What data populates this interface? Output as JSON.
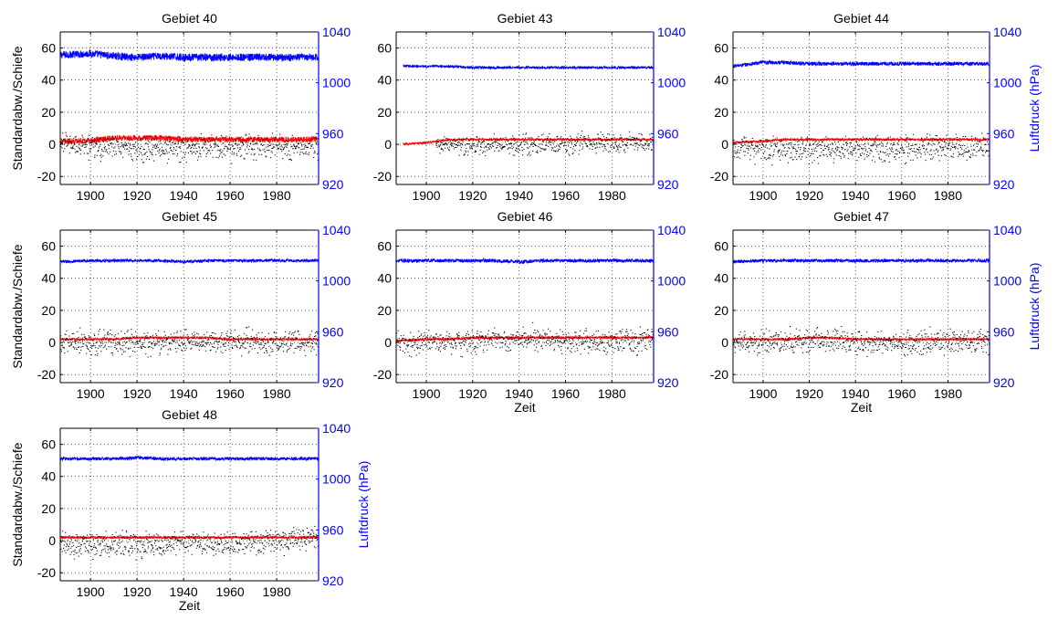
{
  "figure": {
    "left_axis_label": "Standardabw./Schiefe",
    "right_axis_label": "Luftdruck (hPa)",
    "x_axis_label": "Zeit"
  },
  "colors": {
    "pressure": "#0000ff",
    "std": "#ff0000",
    "skew": "#000000",
    "grid": "#000000",
    "right_axis": "#0000ff"
  },
  "chart_data": [
    {
      "type": "line",
      "title": "Gebiet 40",
      "xlim": [
        1887,
        1998
      ],
      "xticks": [
        1900,
        1920,
        1940,
        1960,
        1980
      ],
      "ylim_left": [
        -25,
        70
      ],
      "yticks_left": [
        -20,
        0,
        20,
        40,
        60
      ],
      "ylim_right": [
        920,
        1040
      ],
      "yticks_right": [
        920,
        960,
        1000,
        1040
      ],
      "ylabel_left": "Standardabw./Schiefe",
      "ylabel_right": "",
      "xlabel": "",
      "grid": true,
      "series": [
        {
          "role": "pressure",
          "axis": "right",
          "start": 1887,
          "end": 1998,
          "x": [
            1889,
            1900,
            1910,
            1920,
            1930,
            1940,
            1950,
            1960,
            1970,
            1980,
            1990,
            1998
          ],
          "y": [
            1022,
            1023,
            1021,
            1020,
            1021,
            1020,
            1020,
            1020,
            1020,
            1020,
            1020,
            1020
          ],
          "noise": 3
        },
        {
          "role": "std",
          "axis": "left",
          "start": 1887,
          "end": 1998,
          "x": [
            1889,
            1900,
            1910,
            1920,
            1930,
            1940,
            1950,
            1960,
            1970,
            1980,
            1990,
            1998
          ],
          "y": [
            2,
            2,
            4,
            4,
            4,
            3,
            3,
            3,
            3,
            3,
            3,
            3
          ],
          "noise": 1.8
        },
        {
          "role": "skew",
          "axis": "left",
          "start": 1887,
          "end": 1998,
          "x": [
            1889,
            1900,
            1910,
            1920,
            1930,
            1940,
            1950,
            1960,
            1970,
            1980,
            1990,
            1998
          ],
          "y": [
            0,
            -1,
            -2,
            -3,
            -3,
            -3,
            -2,
            -2,
            -2,
            -2,
            -2,
            -2
          ],
          "noise": 6
        }
      ]
    },
    {
      "type": "line",
      "title": "Gebiet 43",
      "xlim": [
        1887,
        1998
      ],
      "xticks": [
        1900,
        1920,
        1940,
        1960,
        1980
      ],
      "ylim_left": [
        -25,
        70
      ],
      "yticks_left": [
        -20,
        0,
        20,
        40,
        60
      ],
      "ylim_right": [
        920,
        1040
      ],
      "yticks_right": [
        920,
        960,
        1000,
        1040
      ],
      "ylabel_left": "",
      "ylabel_right": "",
      "xlabel": "",
      "grid": true,
      "series": [
        {
          "role": "pressure",
          "axis": "right",
          "start": 1890,
          "end": 1998,
          "x": [
            1890,
            1900,
            1910,
            1920,
            1930,
            1940,
            1950,
            1960,
            1970,
            1980,
            1990,
            1998
          ],
          "y": [
            1013,
            1013,
            1013,
            1012,
            1012,
            1012,
            1012,
            1012,
            1012,
            1012,
            1012,
            1012
          ],
          "noise": 1
        },
        {
          "role": "std",
          "axis": "left",
          "start": 1890,
          "end": 1998,
          "x": [
            1890,
            1900,
            1910,
            1920,
            1930,
            1940,
            1950,
            1960,
            1970,
            1980,
            1990,
            1998
          ],
          "y": [
            0,
            1,
            3,
            3,
            3,
            3,
            3,
            3,
            3,
            3,
            3,
            3
          ],
          "noise": 0.7
        },
        {
          "role": "skew",
          "axis": "left",
          "start": 1904,
          "end": 1998,
          "x": [
            1904,
            1910,
            1920,
            1930,
            1940,
            1950,
            1960,
            1970,
            1980,
            1990,
            1998
          ],
          "y": [
            0,
            -1,
            -1,
            -1,
            0,
            0,
            0,
            1,
            1,
            1,
            1
          ],
          "noise": 5
        }
      ]
    },
    {
      "type": "line",
      "title": "Gebiet 44",
      "xlim": [
        1887,
        1998
      ],
      "xticks": [
        1900,
        1920,
        1940,
        1960,
        1980
      ],
      "ylim_left": [
        -25,
        70
      ],
      "yticks_left": [
        -20,
        0,
        20,
        40,
        60
      ],
      "ylim_right": [
        920,
        1040
      ],
      "yticks_right": [
        920,
        960,
        1000,
        1040
      ],
      "ylabel_left": "",
      "ylabel_right": "Luftdruck (hPa)",
      "xlabel": "",
      "grid": true,
      "series": [
        {
          "role": "pressure",
          "axis": "right",
          "start": 1887,
          "end": 1998,
          "x": [
            1887,
            1900,
            1910,
            1920,
            1930,
            1940,
            1950,
            1960,
            1970,
            1980,
            1990,
            1998
          ],
          "y": [
            1013,
            1016,
            1016,
            1015,
            1015,
            1015,
            1015,
            1015,
            1015,
            1015,
            1015,
            1015
          ],
          "noise": 1.5
        },
        {
          "role": "std",
          "axis": "left",
          "start": 1887,
          "end": 1998,
          "x": [
            1887,
            1900,
            1910,
            1920,
            1930,
            1940,
            1950,
            1960,
            1970,
            1980,
            1990,
            1998
          ],
          "y": [
            1,
            2,
            3,
            3,
            3,
            3,
            3,
            3,
            3,
            3,
            3,
            3
          ],
          "noise": 0.8
        },
        {
          "role": "skew",
          "axis": "left",
          "start": 1887,
          "end": 1998,
          "x": [
            1887,
            1900,
            1910,
            1920,
            1930,
            1940,
            1950,
            1960,
            1970,
            1980,
            1990,
            1998
          ],
          "y": [
            -2,
            -4,
            -3,
            -3,
            -3,
            -3,
            -3,
            -3,
            -2,
            -2,
            -2,
            -2
          ],
          "noise": 6
        }
      ]
    },
    {
      "type": "line",
      "title": "Gebiet 45",
      "xlim": [
        1887,
        1998
      ],
      "xticks": [
        1900,
        1920,
        1940,
        1960,
        1980
      ],
      "ylim_left": [
        -25,
        70
      ],
      "yticks_left": [
        -20,
        0,
        20,
        40,
        60
      ],
      "ylim_right": [
        920,
        1040
      ],
      "yticks_right": [
        920,
        960,
        1000,
        1040
      ],
      "ylabel_left": "Standardabw./Schiefe",
      "ylabel_right": "",
      "xlabel": "",
      "grid": true,
      "series": [
        {
          "role": "pressure",
          "axis": "right",
          "start": 1887,
          "end": 1998,
          "x": [
            1887,
            1900,
            1910,
            1920,
            1930,
            1940,
            1950,
            1960,
            1970,
            1980,
            1990,
            1998
          ],
          "y": [
            1015,
            1016,
            1016,
            1016,
            1016,
            1015,
            1016,
            1016,
            1016,
            1016,
            1016,
            1016
          ],
          "noise": 1.2
        },
        {
          "role": "std",
          "axis": "left",
          "start": 1887,
          "end": 1998,
          "x": [
            1887,
            1900,
            1910,
            1920,
            1930,
            1940,
            1950,
            1960,
            1970,
            1980,
            1990,
            1998
          ],
          "y": [
            2,
            2,
            2,
            3,
            3,
            3,
            3,
            2,
            2,
            2,
            2,
            2
          ],
          "noise": 0.7
        },
        {
          "role": "skew",
          "axis": "left",
          "start": 1887,
          "end": 1998,
          "x": [
            1887,
            1900,
            1910,
            1920,
            1930,
            1940,
            1950,
            1960,
            1970,
            1980,
            1990,
            1998
          ],
          "y": [
            0,
            0,
            0,
            0,
            0,
            0,
            0,
            0,
            0,
            0,
            0,
            0
          ],
          "noise": 6
        }
      ]
    },
    {
      "type": "line",
      "title": "Gebiet 46",
      "xlim": [
        1887,
        1998
      ],
      "xticks": [
        1900,
        1920,
        1940,
        1960,
        1980
      ],
      "ylim_left": [
        -25,
        70
      ],
      "yticks_left": [
        -20,
        0,
        20,
        40,
        60
      ],
      "ylim_right": [
        920,
        1040
      ],
      "yticks_right": [
        920,
        960,
        1000,
        1040
      ],
      "ylabel_left": "",
      "ylabel_right": "",
      "xlabel": "Zeit",
      "grid": true,
      "series": [
        {
          "role": "pressure",
          "axis": "right",
          "start": 1887,
          "end": 1998,
          "x": [
            1887,
            1900,
            1910,
            1920,
            1930,
            1940,
            1950,
            1960,
            1970,
            1980,
            1990,
            1998
          ],
          "y": [
            1016,
            1016,
            1016,
            1016,
            1016,
            1015,
            1016,
            1016,
            1016,
            1016,
            1016,
            1016
          ],
          "noise": 1.4
        },
        {
          "role": "std",
          "axis": "left",
          "start": 1887,
          "end": 1998,
          "x": [
            1887,
            1900,
            1910,
            1920,
            1930,
            1940,
            1950,
            1960,
            1970,
            1980,
            1990,
            1998
          ],
          "y": [
            1,
            2,
            2,
            3,
            3,
            3,
            3,
            3,
            3,
            3,
            3,
            3
          ],
          "noise": 0.8
        },
        {
          "role": "skew",
          "axis": "left",
          "start": 1887,
          "end": 1998,
          "x": [
            1887,
            1900,
            1910,
            1920,
            1930,
            1940,
            1950,
            1960,
            1970,
            1980,
            1990,
            1998
          ],
          "y": [
            0,
            0,
            0,
            0,
            1,
            2,
            2,
            2,
            1,
            1,
            1,
            1
          ],
          "noise": 6
        }
      ]
    },
    {
      "type": "line",
      "title": "Gebiet 47",
      "xlim": [
        1887,
        1998
      ],
      "xticks": [
        1900,
        1920,
        1940,
        1960,
        1980
      ],
      "ylim_left": [
        -25,
        70
      ],
      "yticks_left": [
        -20,
        0,
        20,
        40,
        60
      ],
      "ylim_right": [
        920,
        1040
      ],
      "yticks_right": [
        920,
        960,
        1000,
        1040
      ],
      "ylabel_left": "",
      "ylabel_right": "Luftdruck (hPa)",
      "xlabel": "Zeit",
      "grid": true,
      "series": [
        {
          "role": "pressure",
          "axis": "right",
          "start": 1887,
          "end": 1998,
          "x": [
            1887,
            1900,
            1910,
            1920,
            1930,
            1940,
            1950,
            1960,
            1970,
            1980,
            1990,
            1998
          ],
          "y": [
            1015,
            1016,
            1016,
            1016,
            1016,
            1016,
            1016,
            1016,
            1016,
            1016,
            1016,
            1016
          ],
          "noise": 1.3
        },
        {
          "role": "std",
          "axis": "left",
          "start": 1887,
          "end": 1998,
          "x": [
            1887,
            1900,
            1910,
            1920,
            1930,
            1940,
            1950,
            1960,
            1970,
            1980,
            1990,
            1998
          ],
          "y": [
            2,
            2,
            2,
            3,
            3,
            2,
            2,
            2,
            2,
            2,
            2,
            2
          ],
          "noise": 0.7
        },
        {
          "role": "skew",
          "axis": "left",
          "start": 1887,
          "end": 1998,
          "x": [
            1887,
            1900,
            1910,
            1920,
            1930,
            1940,
            1950,
            1960,
            1970,
            1980,
            1990,
            1998
          ],
          "y": [
            -1,
            0,
            1,
            1,
            1,
            0,
            -1,
            -1,
            0,
            1,
            1,
            1
          ],
          "noise": 6
        }
      ]
    },
    {
      "type": "line",
      "title": "Gebiet 48",
      "xlim": [
        1887,
        1998
      ],
      "xticks": [
        1900,
        1920,
        1940,
        1960,
        1980
      ],
      "ylim_left": [
        -25,
        70
      ],
      "yticks_left": [
        -20,
        0,
        20,
        40,
        60
      ],
      "ylim_right": [
        920,
        1040
      ],
      "yticks_right": [
        920,
        960,
        1000,
        1040
      ],
      "ylabel_left": "Standardabw./Schiefe",
      "ylabel_right": "Luftdruck (hPa)",
      "xlabel": "Zeit",
      "grid": true,
      "series": [
        {
          "role": "pressure",
          "axis": "right",
          "start": 1887,
          "end": 1998,
          "x": [
            1887,
            1900,
            1910,
            1920,
            1930,
            1940,
            1950,
            1960,
            1970,
            1980,
            1990,
            1998
          ],
          "y": [
            1016,
            1016,
            1016,
            1017,
            1016,
            1016,
            1016,
            1016,
            1016,
            1016,
            1016,
            1016
          ],
          "noise": 1.3
        },
        {
          "role": "std",
          "axis": "left",
          "start": 1887,
          "end": 1998,
          "x": [
            1887,
            1900,
            1910,
            1920,
            1930,
            1940,
            1950,
            1960,
            1970,
            1980,
            1990,
            1998
          ],
          "y": [
            2,
            2,
            2,
            2,
            2,
            2,
            2,
            2,
            2,
            2,
            2,
            2
          ],
          "noise": 0.8
        },
        {
          "role": "skew",
          "axis": "left",
          "start": 1887,
          "end": 1998,
          "x": [
            1887,
            1900,
            1910,
            1920,
            1930,
            1940,
            1950,
            1960,
            1970,
            1980,
            1990,
            1998
          ],
          "y": [
            -3,
            -3,
            -3,
            -3,
            -3,
            -2,
            -2,
            -2,
            -1,
            0,
            1,
            1
          ],
          "noise": 6
        }
      ]
    }
  ]
}
